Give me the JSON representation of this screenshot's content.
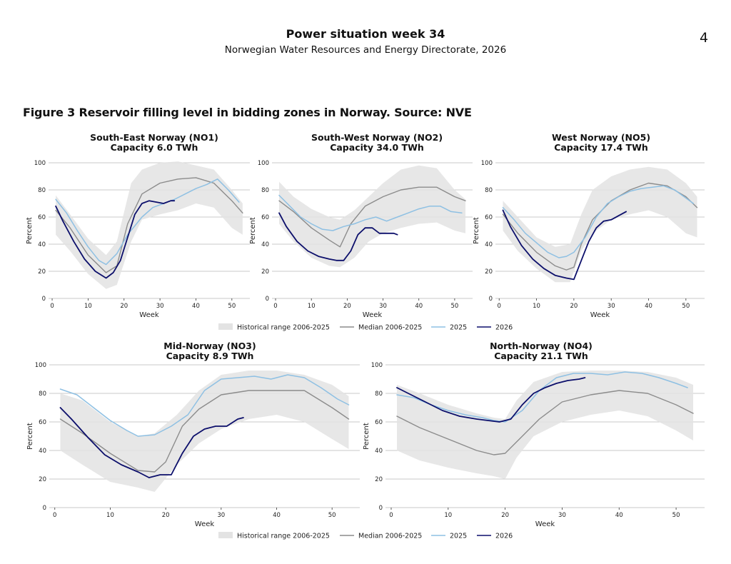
{
  "header": {
    "title": "Power situation week 34",
    "subtitle": "Norwegian Water Resources and Energy Directorate, 2026",
    "page_number": "4"
  },
  "figure": {
    "caption": "Figure 3 Reservoir filling level in bidding zones in Norway. Source: NVE"
  },
  "colors": {
    "range": "#e3e3e3",
    "median": "#8c8c8c",
    "y2025": "#8ec0e3",
    "y2026": "#0c0f6b",
    "grid": "#b8b8b8"
  },
  "legend": {
    "range": "Historical range 2006-2025",
    "median": "Median 2006-2025",
    "y2025": "2025",
    "y2026": "2026"
  },
  "chart_data": [
    {
      "type": "line",
      "title": "South-East Norway (NO1)",
      "subtitle": "Capacity 6.0 TWh",
      "xlabel": "Week",
      "ylabel": "Percent",
      "xlim": [
        -1,
        55
      ],
      "ylim": [
        0,
        100
      ],
      "xticks": [
        0,
        10,
        20,
        30,
        40,
        50
      ],
      "yticks": [
        0,
        20,
        40,
        60,
        80,
        100
      ],
      "grid": true,
      "range": {
        "x": [
          1,
          5,
          10,
          15,
          18,
          22,
          25,
          30,
          35,
          40,
          45,
          50,
          53
        ],
        "min": [
          47,
          35,
          18,
          7,
          10,
          42,
          58,
          62,
          65,
          70,
          67,
          52,
          47
        ],
        "max": [
          76,
          62,
          44,
          32,
          42,
          85,
          95,
          100,
          101,
          98,
          95,
          80,
          70
        ]
      },
      "series": [
        {
          "name": "Median 2006-2025",
          "x": [
            1,
            5,
            10,
            15,
            18,
            21,
            25,
            30,
            35,
            40,
            45,
            50,
            53
          ],
          "values": [
            65,
            52,
            32,
            19,
            24,
            55,
            77,
            85,
            88,
            89,
            85,
            72,
            63
          ]
        },
        {
          "name": "2025",
          "x": [
            1,
            4,
            7,
            10,
            13,
            15,
            18,
            21,
            25,
            28,
            31,
            34,
            37,
            40,
            43,
            46,
            49,
            52
          ],
          "values": [
            73,
            63,
            50,
            38,
            28,
            25,
            33,
            47,
            60,
            67,
            70,
            73,
            77,
            81,
            84,
            88,
            80,
            71
          ]
        },
        {
          "name": "2026",
          "x": [
            1,
            3,
            6,
            9,
            12,
            15,
            17,
            19,
            21,
            23,
            25,
            27,
            29,
            31,
            33,
            34
          ],
          "values": [
            68,
            57,
            42,
            29,
            20,
            15,
            19,
            28,
            45,
            62,
            70,
            72,
            71,
            70,
            72,
            72
          ]
        }
      ]
    },
    {
      "type": "line",
      "title": "South-West Norway (NO2)",
      "subtitle": "Capacity 34.0 TWh",
      "xlabel": "Week",
      "ylabel": "Percent",
      "xlim": [
        -1,
        55
      ],
      "ylim": [
        0,
        100
      ],
      "xticks": [
        0,
        10,
        20,
        30,
        40,
        50
      ],
      "yticks": [
        0,
        20,
        40,
        60,
        80,
        100
      ],
      "grid": true,
      "range": {
        "x": [
          1,
          5,
          10,
          15,
          18,
          22,
          26,
          30,
          35,
          40,
          45,
          50,
          53
        ],
        "min": [
          55,
          42,
          30,
          24,
          23,
          30,
          42,
          48,
          52,
          55,
          56,
          50,
          48
        ],
        "max": [
          86,
          75,
          66,
          60,
          58,
          65,
          75,
          85,
          95,
          98,
          96,
          80,
          73
        ]
      },
      "series": [
        {
          "name": "Median 2006-2025",
          "x": [
            1,
            5,
            10,
            15,
            18,
            21,
            25,
            30,
            35,
            40,
            45,
            50,
            53
          ],
          "values": [
            72,
            64,
            52,
            43,
            38,
            55,
            68,
            75,
            80,
            82,
            82,
            75,
            72
          ]
        },
        {
          "name": "2025",
          "x": [
            1,
            4,
            7,
            10,
            13,
            16,
            19,
            22,
            25,
            28,
            31,
            34,
            37,
            40,
            43,
            46,
            49,
            52
          ],
          "values": [
            76,
            68,
            60,
            55,
            51,
            50,
            53,
            55,
            58,
            60,
            57,
            60,
            63,
            66,
            68,
            68,
            64,
            63
          ]
        },
        {
          "name": "2026",
          "x": [
            1,
            3,
            6,
            9,
            12,
            15,
            17,
            19,
            21,
            23,
            25,
            27,
            29,
            31,
            33,
            34
          ],
          "values": [
            63,
            53,
            42,
            35,
            31,
            29,
            28,
            28,
            35,
            47,
            52,
            52,
            48,
            48,
            48,
            47
          ]
        }
      ]
    },
    {
      "type": "line",
      "title": "West Norway (NO5)",
      "subtitle": "Capacity 17.4 TWh",
      "xlabel": "Week",
      "ylabel": "Percent",
      "xlim": [
        -1,
        55
      ],
      "ylim": [
        0,
        100
      ],
      "xticks": [
        0,
        10,
        20,
        30,
        40,
        50
      ],
      "yticks": [
        0,
        20,
        40,
        60,
        80,
        100
      ],
      "grid": true,
      "range": {
        "x": [
          1,
          5,
          10,
          15,
          19,
          22,
          25,
          30,
          35,
          40,
          45,
          50,
          53
        ],
        "min": [
          50,
          35,
          22,
          12,
          12,
          35,
          48,
          58,
          62,
          65,
          60,
          48,
          45
        ],
        "max": [
          72,
          60,
          45,
          38,
          40,
          62,
          80,
          90,
          95,
          97,
          95,
          85,
          75
        ]
      },
      "series": [
        {
          "name": "Median 2006-2025",
          "x": [
            1,
            5,
            10,
            15,
            18,
            20,
            22,
            25,
            30,
            35,
            40,
            45,
            50,
            53
          ],
          "values": [
            62,
            48,
            34,
            24,
            21,
            23,
            40,
            58,
            72,
            80,
            85,
            83,
            75,
            67
          ]
        },
        {
          "name": "2025",
          "x": [
            1,
            4,
            7,
            10,
            13,
            16,
            18,
            20,
            23,
            26,
            29,
            32,
            35,
            38,
            41,
            44,
            47,
            50,
            52
          ],
          "values": [
            67,
            58,
            48,
            41,
            34,
            30,
            31,
            34,
            45,
            60,
            70,
            75,
            79,
            81,
            82,
            83,
            80,
            74,
            70
          ]
        },
        {
          "name": "2026",
          "x": [
            1,
            3,
            6,
            9,
            12,
            15,
            18,
            20,
            22,
            24,
            26,
            28,
            30,
            32,
            34
          ],
          "values": [
            65,
            53,
            39,
            29,
            22,
            17,
            15,
            14,
            28,
            42,
            52,
            57,
            58,
            61,
            64
          ]
        }
      ]
    },
    {
      "type": "line",
      "title": "Mid-Norway (NO3)",
      "subtitle": "Capacity 8.9 TWh",
      "xlabel": "Week",
      "ylabel": "Percent",
      "xlim": [
        -1,
        55
      ],
      "ylim": [
        0,
        100
      ],
      "xticks": [
        0,
        10,
        20,
        30,
        40,
        50
      ],
      "yticks": [
        0,
        20,
        40,
        60,
        80,
        100
      ],
      "grid": true,
      "range": {
        "x": [
          1,
          5,
          10,
          15,
          18,
          22,
          26,
          30,
          35,
          40,
          45,
          50,
          53
        ],
        "min": [
          40,
          30,
          18,
          14,
          11,
          30,
          45,
          55,
          62,
          65,
          60,
          48,
          41
        ],
        "max": [
          80,
          75,
          60,
          50,
          52,
          65,
          82,
          93,
          96,
          96,
          93,
          86,
          78
        ]
      },
      "series": [
        {
          "name": "Median 2006-2025",
          "x": [
            1,
            5,
            10,
            15,
            18,
            20,
            23,
            26,
            30,
            35,
            40,
            45,
            50,
            53
          ],
          "values": [
            62,
            52,
            38,
            26,
            25,
            32,
            57,
            69,
            79,
            82,
            82,
            82,
            70,
            62
          ]
        },
        {
          "name": "2025",
          "x": [
            1,
            4,
            7,
            10,
            13,
            15,
            18,
            21,
            24,
            27,
            30,
            33,
            36,
            39,
            42,
            45,
            48,
            51,
            53
          ],
          "values": [
            83,
            79,
            70,
            61,
            54,
            50,
            51,
            57,
            65,
            82,
            90,
            91,
            92,
            90,
            93,
            91,
            84,
            76,
            72
          ]
        },
        {
          "name": "2026",
          "x": [
            1,
            3,
            6,
            9,
            12,
            15,
            17,
            19,
            21,
            23,
            25,
            27,
            29,
            31,
            33,
            34
          ],
          "values": [
            70,
            62,
            49,
            37,
            30,
            25,
            21,
            23,
            23,
            38,
            50,
            55,
            57,
            57,
            62,
            63
          ]
        }
      ]
    },
    {
      "type": "line",
      "title": "North-Norway (NO4)",
      "subtitle": "Capacity 21.1 TWh",
      "xlabel": "Week",
      "ylabel": "Percent",
      "xlim": [
        -1,
        55
      ],
      "ylim": [
        0,
        100
      ],
      "xticks": [
        0,
        10,
        20,
        30,
        40,
        50
      ],
      "yticks": [
        0,
        20,
        40,
        60,
        80,
        100
      ],
      "grid": true,
      "range": {
        "x": [
          1,
          5,
          10,
          15,
          18,
          20,
          22,
          25,
          30,
          35,
          40,
          45,
          50,
          53
        ],
        "min": [
          40,
          33,
          28,
          24,
          22,
          20,
          35,
          50,
          60,
          65,
          68,
          64,
          54,
          47
        ],
        "max": [
          86,
          80,
          72,
          66,
          63,
          62,
          75,
          88,
          95,
          96,
          96,
          95,
          91,
          86
        ]
      },
      "series": [
        {
          "name": "Median 2006-2025",
          "x": [
            1,
            5,
            10,
            15,
            18,
            20,
            23,
            26,
            30,
            35,
            40,
            45,
            50,
            53
          ],
          "values": [
            64,
            56,
            48,
            40,
            37,
            38,
            50,
            62,
            74,
            79,
            82,
            80,
            72,
            66
          ]
        },
        {
          "name": "2025",
          "x": [
            1,
            4,
            7,
            10,
            13,
            16,
            18,
            20,
            23,
            26,
            29,
            32,
            35,
            38,
            41,
            44,
            47,
            50,
            52
          ],
          "values": [
            79,
            77,
            72,
            68,
            65,
            63,
            61,
            60,
            68,
            82,
            91,
            94,
            94,
            93,
            95,
            94,
            91,
            87,
            84
          ]
        },
        {
          "name": "2026",
          "x": [
            1,
            3,
            6,
            9,
            12,
            15,
            17,
            19,
            21,
            23,
            25,
            27,
            29,
            31,
            33,
            34
          ],
          "values": [
            84,
            80,
            74,
            68,
            64,
            62,
            61,
            60,
            62,
            72,
            80,
            84,
            87,
            89,
            90,
            91
          ]
        }
      ]
    }
  ]
}
